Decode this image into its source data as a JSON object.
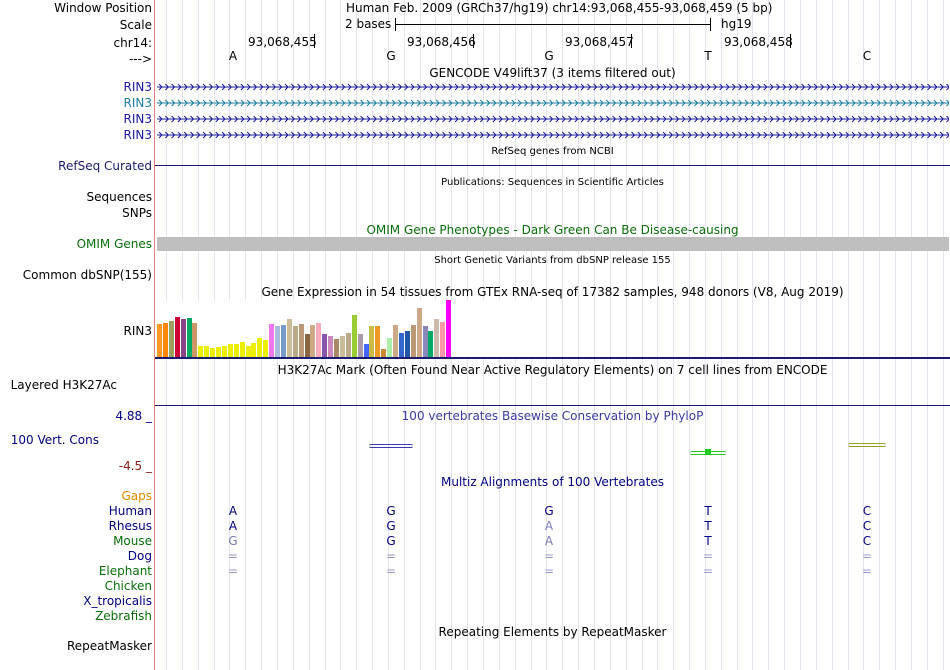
{
  "header": {
    "window_position_label": "Window Position",
    "window_position_value": "Human Feb. 2009 (GRCh37/hg19)   chr14:93,068,455-93,068,459 (5 bp)",
    "scale_label": "Scale",
    "scale_text": "2 bases",
    "scale_assembly": "hg19",
    "chrom_label": "chr14:",
    "coords": [
      "93,068,455",
      "93,068,456",
      "93,068,457",
      "93,068,458"
    ],
    "strand_label": "--->",
    "bases": [
      "A",
      "G",
      "G",
      "T",
      "C"
    ]
  },
  "tracks": {
    "gencode": {
      "title": "GENCODE V49lift37 (3 items filtered out)",
      "items": [
        {
          "label": "RIN3",
          "color": "#1a1aa0"
        },
        {
          "label": "RIN3",
          "color": "#1a7ea0"
        },
        {
          "label": "RIN3",
          "color": "#1a1aa0"
        },
        {
          "label": "RIN3",
          "color": "#1a1aa0"
        }
      ]
    },
    "refseq": {
      "title": "RefSeq genes from NCBI",
      "label": "RefSeq Curated",
      "color": "#1a1a6e"
    },
    "publications": {
      "title": "Publications: Sequences in Scientific Articles",
      "label": "Sequences"
    },
    "snps_label": "SNPs",
    "omim": {
      "title": "OMIM Gene Phenotypes - Dark Green Can Be Disease-causing",
      "label": "OMIM Genes",
      "color": "#0a6e0a"
    },
    "dbsnp": {
      "title": "Short Genetic Variants from dbSNP release 155",
      "label": "Common dbSNP(155)"
    },
    "gtex": {
      "title": "Gene Expression in 54 tissues from GTEx RNA-seq of 17382 samples, 948 donors (V8, Aug 2019)",
      "label": "RIN3",
      "bars": [
        {
          "value": 0.58,
          "color": "#ff9922"
        },
        {
          "value": 0.6,
          "color": "#ff8800"
        },
        {
          "value": 0.64,
          "color": "#9aa060"
        },
        {
          "value": 0.7,
          "color": "#cc0033"
        },
        {
          "value": 0.66,
          "color": "#884488"
        },
        {
          "value": 0.68,
          "color": "#00aa66"
        },
        {
          "value": 0.6,
          "color": "#cc9966"
        },
        {
          "value": 0.2,
          "color": "#eeee00"
        },
        {
          "value": 0.2,
          "color": "#eeee00"
        },
        {
          "value": 0.16,
          "color": "#eeee00"
        },
        {
          "value": 0.18,
          "color": "#eeee00"
        },
        {
          "value": 0.2,
          "color": "#eeee00"
        },
        {
          "value": 0.22,
          "color": "#eeee00"
        },
        {
          "value": 0.22,
          "color": "#eeee00"
        },
        {
          "value": 0.26,
          "color": "#eeee00"
        },
        {
          "value": 0.2,
          "color": "#eeee00"
        },
        {
          "value": 0.24,
          "color": "#eeee00"
        },
        {
          "value": 0.34,
          "color": "#eeee00"
        },
        {
          "value": 0.3,
          "color": "#eeee00"
        },
        {
          "value": 0.58,
          "color": "#ee77ee"
        },
        {
          "value": 0.54,
          "color": "#aabbdd"
        },
        {
          "value": 0.56,
          "color": "#7799cc"
        },
        {
          "value": 0.66,
          "color": "#ccbb99"
        },
        {
          "value": 0.54,
          "color": "#bbaa88"
        },
        {
          "value": 0.58,
          "color": "#bb9977"
        },
        {
          "value": 0.4,
          "color": "#886644"
        },
        {
          "value": 0.56,
          "color": "#ccaa88"
        },
        {
          "value": 0.6,
          "color": "#ffaabb"
        },
        {
          "value": 0.4,
          "color": "#8855aa"
        },
        {
          "value": 0.36,
          "color": "#cc88bb"
        },
        {
          "value": 0.32,
          "color": "#aa8866"
        },
        {
          "value": 0.36,
          "color": "#ccbb99"
        },
        {
          "value": 0.42,
          "color": "#bbaa88"
        },
        {
          "value": 0.74,
          "color": "#99cc33"
        },
        {
          "value": 0.4,
          "color": "#aa99aa"
        },
        {
          "value": 0.22,
          "color": "#4466ff"
        },
        {
          "value": 0.54,
          "color": "#ccbb44"
        },
        {
          "value": 0.54,
          "color": "#ee9922"
        },
        {
          "value": 0.14,
          "color": "#cc8833"
        },
        {
          "value": 0.34,
          "color": "#aaeeaa"
        },
        {
          "value": 0.56,
          "color": "#ccaa88"
        },
        {
          "value": 0.42,
          "color": "#3366cc"
        },
        {
          "value": 0.46,
          "color": "#2255aa"
        },
        {
          "value": 0.56,
          "color": "#bb9977"
        },
        {
          "value": 0.86,
          "color": "#ccaa88"
        },
        {
          "value": 0.54,
          "color": "#8888bb"
        },
        {
          "value": 0.46,
          "color": "#00aa66"
        },
        {
          "value": 0.66,
          "color": "#ccbbaa"
        },
        {
          "value": 0.62,
          "color": "#ff99aa"
        },
        {
          "value": 1.0,
          "color": "#ff00ff"
        }
      ]
    },
    "h3k27ac": {
      "title": "H3K27Ac Mark (Often Found Near Active Regulatory Elements) on 7 cell lines from ENCODE",
      "label": "Layered H3K27Ac"
    },
    "phylop": {
      "title": "100 vertebrates Basewise Conservation by PhyloP",
      "label": "100 Vert. Cons",
      "ymax": "4.88 _",
      "ymin": "-4.5 _",
      "values": [
        0.0,
        -0.1,
        0.0,
        -0.9,
        0.3
      ]
    },
    "multiz": {
      "title": "Multiz Alignments of 100 Vertebrates",
      "gaps_label": "Gaps",
      "species": [
        {
          "name": "Human",
          "color": "#000080",
          "bases": [
            "A",
            "G",
            "G",
            "T",
            "C"
          ]
        },
        {
          "name": "Rhesus",
          "color": "#000080",
          "bases": [
            "A",
            "G",
            "A",
            "T",
            "C"
          ]
        },
        {
          "name": "Mouse",
          "color": "#0a6e0a",
          "bases": [
            "G",
            "G",
            "A",
            "T",
            "C"
          ]
        },
        {
          "name": "Dog",
          "color": "#000080",
          "bases": [
            "=",
            "=",
            "=",
            "=",
            "="
          ]
        },
        {
          "name": "Elephant",
          "color": "#0a6e0a",
          "bases": [
            "=",
            "=",
            "=",
            "=",
            "="
          ]
        },
        {
          "name": "Chicken",
          "color": "#0a6e0a",
          "bases": [
            "",
            "",
            "",
            "",
            ""
          ]
        },
        {
          "name": "X_tropicalis",
          "color": "#000080",
          "bases": [
            "",
            "",
            "",
            "",
            ""
          ]
        },
        {
          "name": "Zebrafish",
          "color": "#0a6e0a",
          "bases": [
            "",
            "",
            "",
            "",
            ""
          ]
        }
      ]
    },
    "repeatmasker": {
      "title": "Repeating Elements by RepeatMasker",
      "label": "RepeatMasker"
    }
  },
  "colors": {
    "nav": "#000080",
    "gaps": "#e08a00",
    "cons_max": "#000080",
    "cons_min": "#8a1a1a",
    "omim_bar": "#bebebe"
  }
}
